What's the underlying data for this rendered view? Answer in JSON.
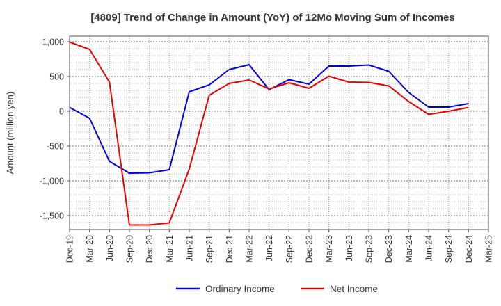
{
  "chart_data": {
    "type": "line",
    "title": "[4809]  Trend of Change in Amount (YoY) of 12Mo Moving Sum of Incomes",
    "xlabel": "",
    "ylabel": "Amount (million yen)",
    "categories": [
      "Dec-19",
      "Mar-20",
      "Jun-20",
      "Sep-20",
      "Dec-20",
      "Mar-21",
      "Jun-21",
      "Sep-21",
      "Dec-21",
      "Mar-22",
      "Jun-22",
      "Sep-22",
      "Dec-22",
      "Mar-23",
      "Jun-23",
      "Sep-23",
      "Dec-23",
      "Mar-24",
      "Jun-24",
      "Sep-24",
      "Dec-24",
      "Mar-25"
    ],
    "ylim": [
      -1700,
      1080
    ],
    "yticks": [
      1000,
      500,
      0,
      -500,
      -1000,
      -1500
    ],
    "ytick_labels": [
      "1,000",
      "500",
      "0",
      "-500",
      "-1,000",
      "-1,500"
    ],
    "grid": true,
    "legend_position": "bottom",
    "series": [
      {
        "name": "Ordinary Income",
        "color": "#0000e6",
        "values": [
          55,
          -100,
          -720,
          -890,
          -885,
          -840,
          280,
          380,
          600,
          670,
          310,
          455,
          390,
          650,
          650,
          665,
          575,
          270,
          60,
          60,
          110,
          null
        ]
      },
      {
        "name": "Net Income",
        "color": "#e60000",
        "values": [
          995,
          890,
          420,
          -1635,
          -1635,
          -1605,
          -830,
          230,
          400,
          450,
          320,
          410,
          330,
          505,
          420,
          415,
          365,
          140,
          -45,
          0,
          55,
          null
        ]
      }
    ]
  }
}
